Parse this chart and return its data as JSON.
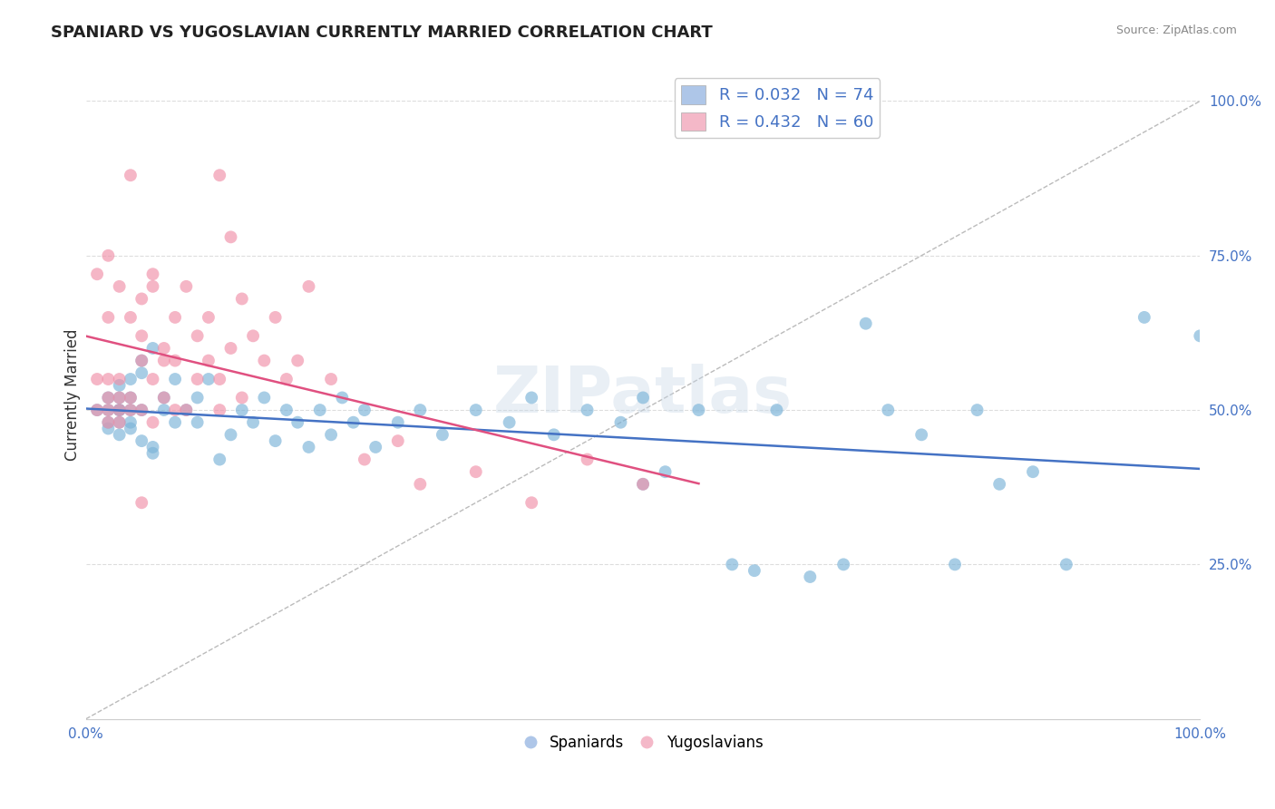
{
  "title": "SPANIARD VS YUGOSLAVIAN CURRENTLY MARRIED CORRELATION CHART",
  "source_text": "Source: ZipAtlas.com",
  "ylabel": "Currently Married",
  "xlim": [
    0.0,
    1.0
  ],
  "ylim": [
    0.0,
    1.05
  ],
  "ytick_labels": [
    "25.0%",
    "50.0%",
    "75.0%",
    "100.0%"
  ],
  "ytick_values": [
    0.25,
    0.5,
    0.75,
    1.0
  ],
  "legend_entries": [
    {
      "label": "R = 0.032   N = 74",
      "color": "#aec6e8"
    },
    {
      "label": "R = 0.432   N = 60",
      "color": "#f4b8c8"
    }
  ],
  "bottom_legend": [
    "Spaniards",
    "Yugoslavians"
  ],
  "bottom_legend_colors": [
    "#aec6e8",
    "#f4b8c8"
  ],
  "spaniards_color": "#7ab3d8",
  "yugoslavians_color": "#f090a8",
  "trendline_spaniards_color": "#4472c4",
  "trendline_yugoslavians_color": "#e05080",
  "background_color": "#ffffff",
  "grid_color": "#dddddd",
  "watermark": "ZIPatlas",
  "spaniards_x": [
    0.01,
    0.02,
    0.02,
    0.02,
    0.02,
    0.03,
    0.03,
    0.03,
    0.03,
    0.03,
    0.03,
    0.04,
    0.04,
    0.04,
    0.04,
    0.04,
    0.05,
    0.05,
    0.05,
    0.05,
    0.06,
    0.06,
    0.06,
    0.07,
    0.07,
    0.08,
    0.08,
    0.09,
    0.1,
    0.1,
    0.11,
    0.12,
    0.13,
    0.14,
    0.15,
    0.16,
    0.17,
    0.18,
    0.19,
    0.2,
    0.21,
    0.22,
    0.23,
    0.24,
    0.25,
    0.26,
    0.28,
    0.3,
    0.32,
    0.35,
    0.38,
    0.4,
    0.42,
    0.45,
    0.48,
    0.5,
    0.5,
    0.52,
    0.55,
    0.58,
    0.6,
    0.62,
    0.65,
    0.68,
    0.7,
    0.72,
    0.75,
    0.78,
    0.8,
    0.82,
    0.85,
    0.88,
    0.95,
    1.0
  ],
  "spaniards_y": [
    0.5,
    0.52,
    0.48,
    0.5,
    0.47,
    0.54,
    0.46,
    0.5,
    0.52,
    0.5,
    0.48,
    0.55,
    0.48,
    0.52,
    0.47,
    0.5,
    0.58,
    0.45,
    0.56,
    0.5,
    0.44,
    0.6,
    0.43,
    0.5,
    0.52,
    0.48,
    0.55,
    0.5,
    0.52,
    0.48,
    0.55,
    0.42,
    0.46,
    0.5,
    0.48,
    0.52,
    0.45,
    0.5,
    0.48,
    0.44,
    0.5,
    0.46,
    0.52,
    0.48,
    0.5,
    0.44,
    0.48,
    0.5,
    0.46,
    0.5,
    0.48,
    0.52,
    0.46,
    0.5,
    0.48,
    0.38,
    0.52,
    0.4,
    0.5,
    0.25,
    0.24,
    0.5,
    0.23,
    0.25,
    0.64,
    0.5,
    0.46,
    0.25,
    0.5,
    0.38,
    0.4,
    0.25,
    0.65,
    0.62
  ],
  "yugoslavians_x": [
    0.01,
    0.01,
    0.01,
    0.02,
    0.02,
    0.02,
    0.02,
    0.02,
    0.02,
    0.03,
    0.03,
    0.03,
    0.03,
    0.03,
    0.04,
    0.04,
    0.04,
    0.05,
    0.05,
    0.05,
    0.05,
    0.06,
    0.06,
    0.06,
    0.06,
    0.07,
    0.07,
    0.07,
    0.08,
    0.08,
    0.08,
    0.09,
    0.09,
    0.1,
    0.1,
    0.11,
    0.11,
    0.12,
    0.12,
    0.13,
    0.14,
    0.14,
    0.15,
    0.16,
    0.17,
    0.18,
    0.19,
    0.2,
    0.22,
    0.25,
    0.28,
    0.3,
    0.35,
    0.4,
    0.45,
    0.5,
    0.12,
    0.13,
    0.04,
    0.05
  ],
  "yugoslavians_y": [
    0.5,
    0.55,
    0.72,
    0.48,
    0.52,
    0.75,
    0.65,
    0.5,
    0.55,
    0.5,
    0.7,
    0.55,
    0.48,
    0.52,
    0.65,
    0.5,
    0.52,
    0.58,
    0.62,
    0.68,
    0.5,
    0.7,
    0.72,
    0.55,
    0.48,
    0.6,
    0.52,
    0.58,
    0.65,
    0.58,
    0.5,
    0.7,
    0.5,
    0.62,
    0.55,
    0.58,
    0.65,
    0.5,
    0.55,
    0.6,
    0.68,
    0.52,
    0.62,
    0.58,
    0.65,
    0.55,
    0.58,
    0.7,
    0.55,
    0.42,
    0.45,
    0.38,
    0.4,
    0.35,
    0.42,
    0.38,
    0.88,
    0.78,
    0.88,
    0.35
  ]
}
